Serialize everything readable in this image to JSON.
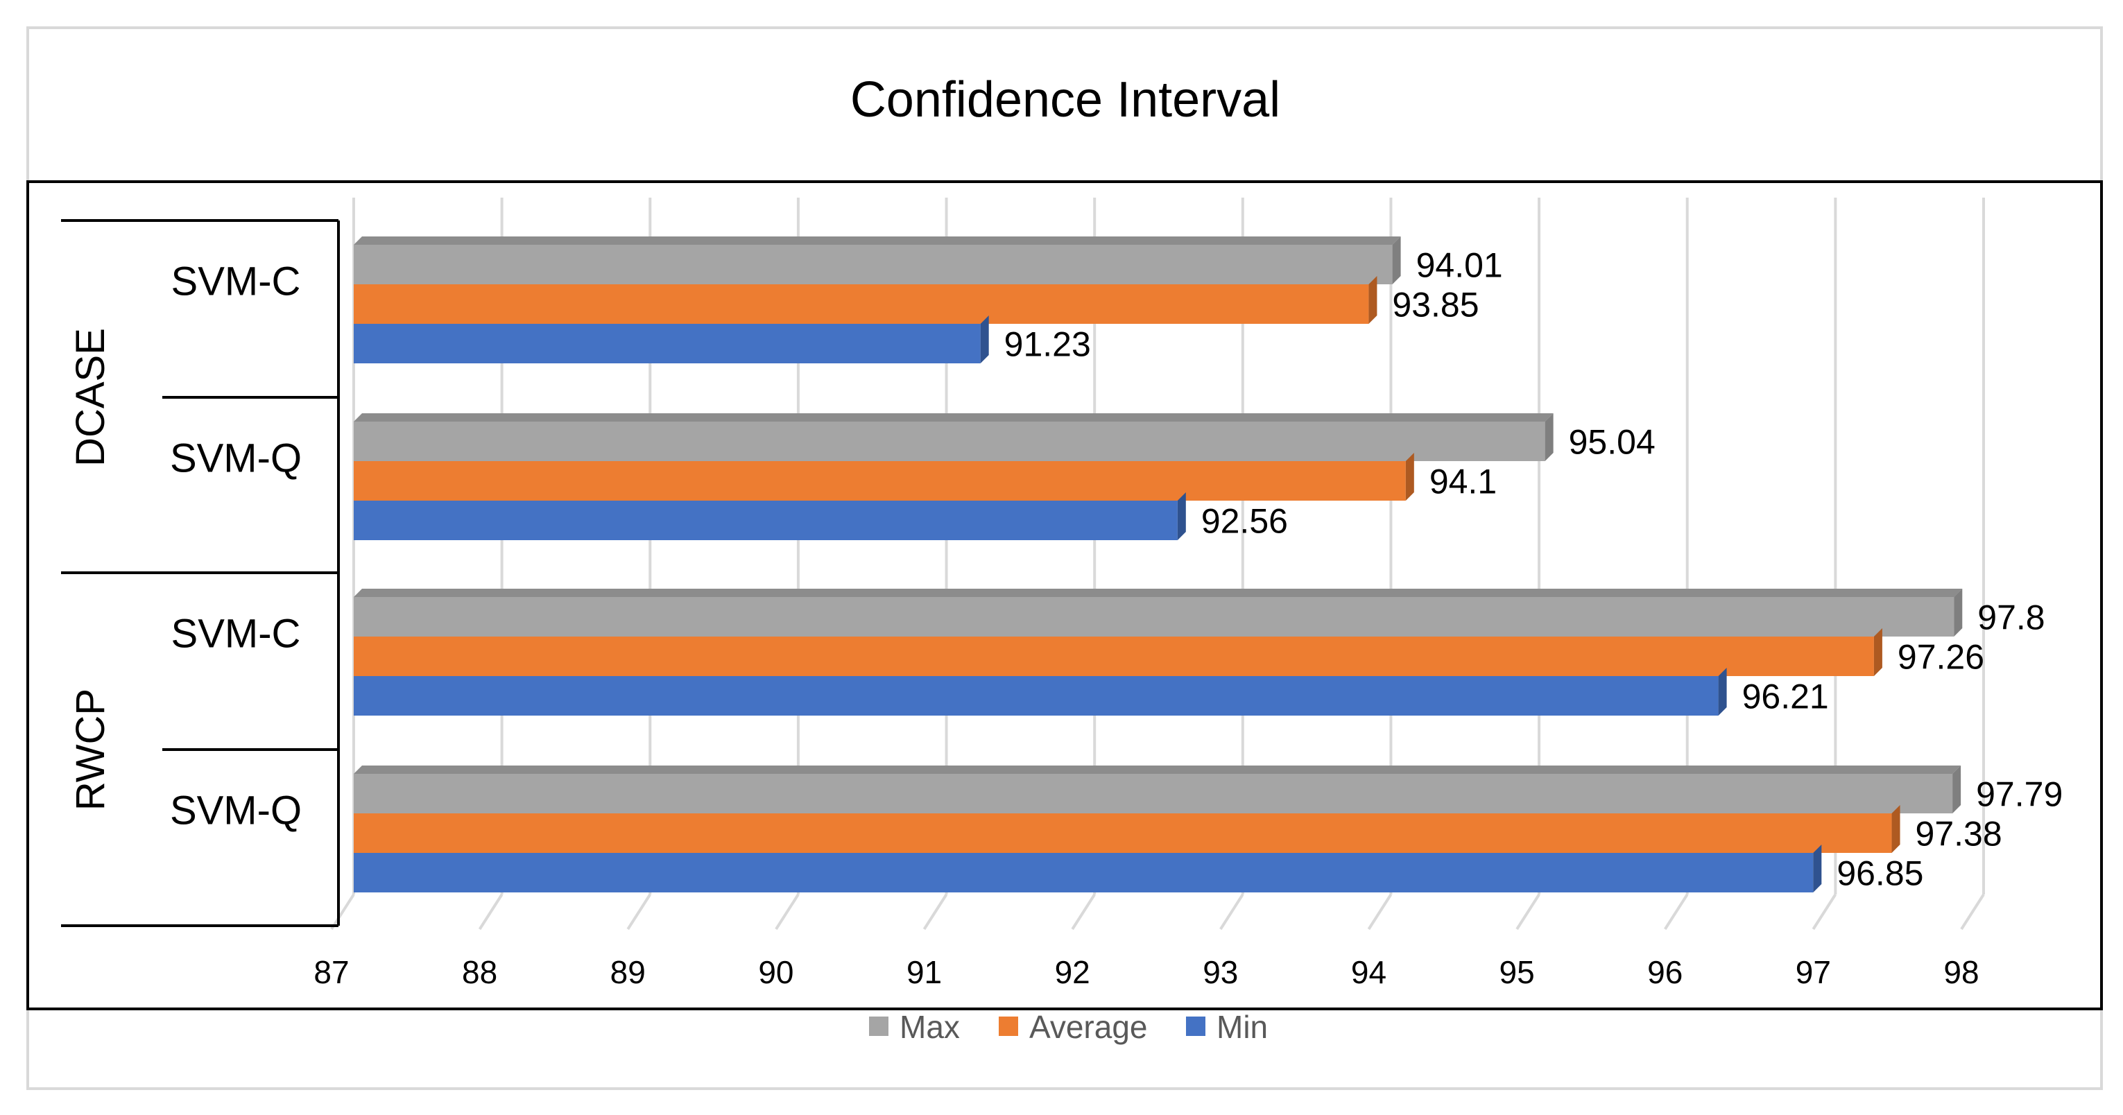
{
  "chart_data": {
    "type": "bar",
    "orientation": "horizontal",
    "title": "Confidence Interval",
    "xlim": [
      87,
      98
    ],
    "xticks": [
      87,
      88,
      89,
      90,
      91,
      92,
      93,
      94,
      95,
      96,
      97,
      98
    ],
    "gridlines": true,
    "legend_position": "bottom",
    "groups": [
      {
        "name": "DCASE",
        "categories": [
          "SVM-C",
          "SVM-Q"
        ]
      },
      {
        "name": "RWCP",
        "categories": [
          "SVM-C",
          "SVM-Q"
        ]
      }
    ],
    "series": [
      {
        "name": "Max",
        "color": "#a5a5a5",
        "values": [
          94.01,
          95.04,
          97.8,
          97.79
        ]
      },
      {
        "name": "Average",
        "color": "#ed7d31",
        "values": [
          93.85,
          94.1,
          97.26,
          97.38
        ]
      },
      {
        "name": "Min",
        "color": "#4472c4",
        "values": [
          91.23,
          92.56,
          96.21,
          96.85
        ]
      }
    ],
    "value_labels": [
      [
        "94.01",
        "95.04",
        "97.8",
        "97.79"
      ],
      [
        "93.85",
        "94.1",
        "97.26",
        "97.38"
      ],
      [
        "91.23",
        "92.56",
        "96.21",
        "96.85"
      ]
    ]
  }
}
